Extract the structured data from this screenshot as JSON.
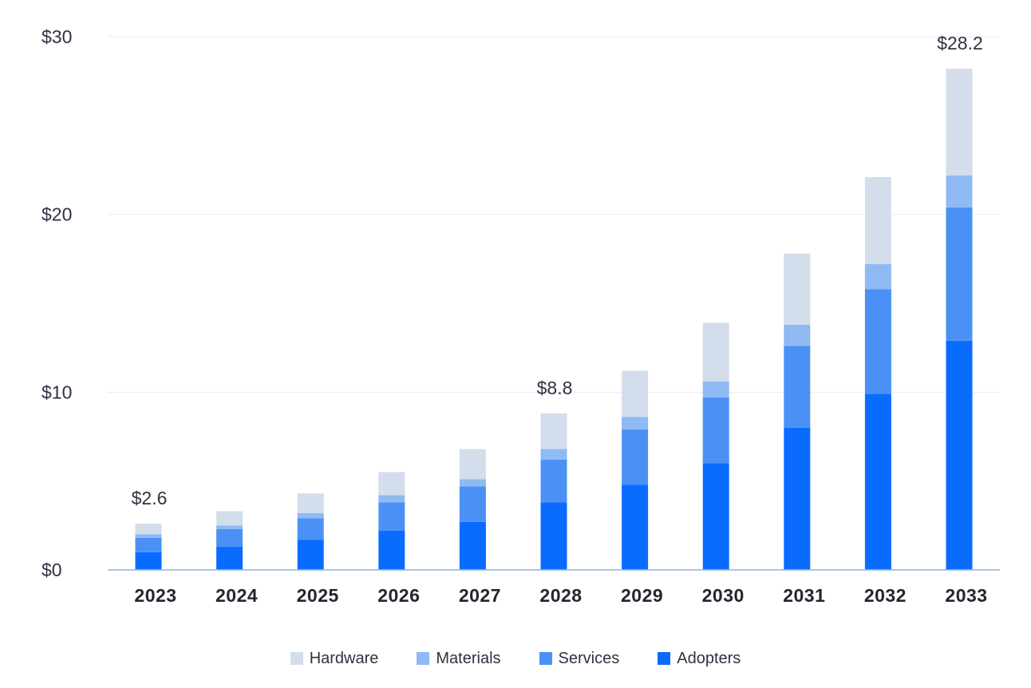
{
  "chart_data": {
    "type": "bar",
    "stacked": true,
    "title": "",
    "xlabel": "",
    "ylabel": "",
    "ylim": [
      0,
      30
    ],
    "yticks": [
      0,
      10,
      20,
      30
    ],
    "ytick_labels": [
      "$0",
      "$10",
      "$20",
      "$30"
    ],
    "grid": true,
    "legend_position": "bottom-center",
    "categories": [
      "2023",
      "2024",
      "2025",
      "2026",
      "2027",
      "2028",
      "2029",
      "2030",
      "2031",
      "2032",
      "2033"
    ],
    "series": [
      {
        "name": "Adopters",
        "color": "#0a6cff",
        "values": [
          1.0,
          1.3,
          1.7,
          2.2,
          2.7,
          3.8,
          4.8,
          6.0,
          8.0,
          9.9,
          12.9
        ]
      },
      {
        "name": "Services",
        "color": "#4b91f5",
        "values": [
          0.8,
          1.0,
          1.2,
          1.6,
          2.0,
          2.4,
          3.1,
          3.7,
          4.6,
          5.9,
          7.5
        ]
      },
      {
        "name": "Materials",
        "color": "#8fbaf3",
        "values": [
          0.2,
          0.2,
          0.3,
          0.4,
          0.4,
          0.6,
          0.7,
          0.9,
          1.2,
          1.4,
          1.8
        ]
      },
      {
        "name": "Hardware",
        "color": "#d3ddeb",
        "values": [
          0.6,
          0.8,
          1.1,
          1.3,
          1.7,
          2.0,
          2.6,
          3.3,
          4.0,
          4.9,
          6.0
        ]
      }
    ],
    "legend_order": [
      "Hardware",
      "Materials",
      "Services",
      "Adopters"
    ],
    "annotations": [
      {
        "category": "2023",
        "text": "$2.6"
      },
      {
        "category": "2028",
        "text": "$8.8"
      },
      {
        "category": "2033",
        "text": "$28.2"
      }
    ]
  }
}
